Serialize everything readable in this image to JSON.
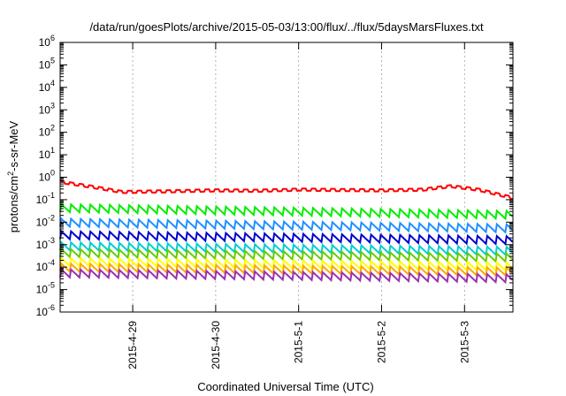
{
  "chart_data": {
    "type": "line",
    "title": "/data/run/goesPlots/archive/2015-05-03/13:00/flux/../flux/5daysMarsFluxes.txt",
    "xlabel": "Coordinated Universal Time (UTC)",
    "ylabel_parts": {
      "pre": "protons/cm",
      "sup": "2",
      "post": "-s-sr-MeV"
    },
    "yscale": "log",
    "ylim": [
      1e-06,
      1000000.0
    ],
    "xlim": [
      "2015-04-28T03:00",
      "2015-05-03T14:00"
    ],
    "grid": "x",
    "y_ticks": [
      {
        "base": "10",
        "exp": "-6",
        "value": 1e-06
      },
      {
        "base": "10",
        "exp": "-5",
        "value": 1e-05
      },
      {
        "base": "10",
        "exp": "-4",
        "value": 0.0001
      },
      {
        "base": "10",
        "exp": "-3",
        "value": 0.001
      },
      {
        "base": "10",
        "exp": "-2",
        "value": 0.01
      },
      {
        "base": "10",
        "exp": "-1",
        "value": 0.1
      },
      {
        "base": "10",
        "exp": "0",
        "value": 1
      },
      {
        "base": "10",
        "exp": "1",
        "value": 10
      },
      {
        "base": "10",
        "exp": "2",
        "value": 100
      },
      {
        "base": "10",
        "exp": "3",
        "value": 1000
      },
      {
        "base": "10",
        "exp": "4",
        "value": 10000
      },
      {
        "base": "10",
        "exp": "5",
        "value": 100000
      },
      {
        "base": "10",
        "exp": "6",
        "value": 1000000
      }
    ],
    "x_ticks": [
      {
        "label": "2015-4-29",
        "value": "2015-04-29T00:00"
      },
      {
        "label": "2015-4-30",
        "value": "2015-04-30T00:00"
      },
      {
        "label": "2015-5-1",
        "value": "2015-05-01T00:00"
      },
      {
        "label": "2015-5-2",
        "value": "2015-05-02T00:00"
      },
      {
        "label": "2015-5-3",
        "value": "2015-05-03T00:00"
      }
    ],
    "series": [
      {
        "color": "#ff0000",
        "pattern": "step",
        "period_hours": 2.8,
        "values": [
          {
            "x": "2015-04-28T03:00",
            "y": 0.62
          },
          {
            "x": "2015-04-28T12:00",
            "y": 0.38
          },
          {
            "x": "2015-04-28T21:00",
            "y": 0.22
          },
          {
            "x": "2015-04-29T12:00",
            "y": 0.24
          },
          {
            "x": "2015-04-30T00:00",
            "y": 0.26
          },
          {
            "x": "2015-04-30T12:00",
            "y": 0.25
          },
          {
            "x": "2015-05-01T00:00",
            "y": 0.28
          },
          {
            "x": "2015-05-01T12:00",
            "y": 0.27
          },
          {
            "x": "2015-05-02T00:00",
            "y": 0.26
          },
          {
            "x": "2015-05-02T12:00",
            "y": 0.28
          },
          {
            "x": "2015-05-02T20:00",
            "y": 0.4
          },
          {
            "x": "2015-05-03T04:00",
            "y": 0.28
          },
          {
            "x": "2015-05-03T14:00",
            "y": 0.12
          }
        ]
      },
      {
        "color": "#00ee00",
        "pattern": "sawtooth",
        "period_hours": 2.8,
        "values": [
          {
            "x": "2015-04-28T03:00",
            "y": 0.04
          },
          {
            "x": "2015-05-03T14:00",
            "y": 0.02
          }
        ]
      },
      {
        "color": "#1e90ff",
        "pattern": "sawtooth",
        "period_hours": 2.8,
        "values": [
          {
            "x": "2015-04-28T03:00",
            "y": 0.009
          },
          {
            "x": "2015-05-03T14:00",
            "y": 0.005
          }
        ]
      },
      {
        "color": "#0000cd",
        "pattern": "sawtooth",
        "period_hours": 2.8,
        "values": [
          {
            "x": "2015-04-28T03:00",
            "y": 0.0025
          },
          {
            "x": "2015-05-03T14:00",
            "y": 0.0015
          }
        ]
      },
      {
        "color": "#00ced1",
        "pattern": "sawtooth",
        "period_hours": 2.8,
        "values": [
          {
            "x": "2015-04-28T03:00",
            "y": 0.0008
          },
          {
            "x": "2015-05-03T14:00",
            "y": 0.0005
          }
        ]
      },
      {
        "color": "#66cd00",
        "pattern": "sawtooth",
        "period_hours": 2.8,
        "values": [
          {
            "x": "2015-04-28T03:00",
            "y": 0.0004
          },
          {
            "x": "2015-05-03T14:00",
            "y": 0.00025
          }
        ]
      },
      {
        "color": "#ffff00",
        "pattern": "sawtooth",
        "period_hours": 2.8,
        "values": [
          {
            "x": "2015-04-28T03:00",
            "y": 0.00016
          },
          {
            "x": "2015-05-03T14:00",
            "y": 0.0001
          }
        ]
      },
      {
        "color": "#ffa500",
        "pattern": "sawtooth",
        "period_hours": 2.8,
        "values": [
          {
            "x": "2015-04-28T03:00",
            "y": 9e-05
          },
          {
            "x": "2015-05-03T14:00",
            "y": 6e-05
          }
        ]
      },
      {
        "color": "#9b30b0",
        "pattern": "sawtooth",
        "period_hours": 2.8,
        "values": [
          {
            "x": "2015-04-28T03:00",
            "y": 5e-05
          },
          {
            "x": "2015-05-03T14:00",
            "y": 3e-05
          }
        ]
      }
    ]
  }
}
